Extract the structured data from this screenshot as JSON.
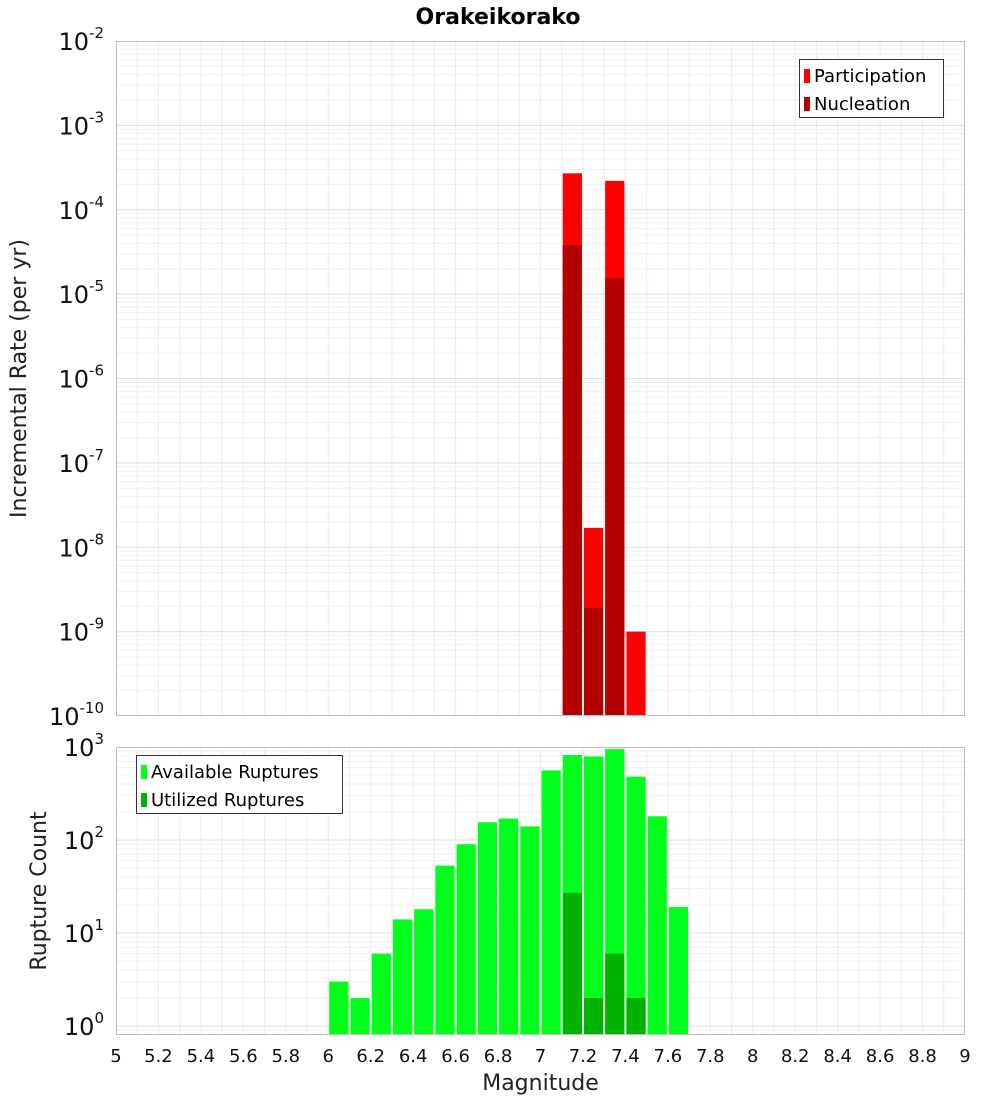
{
  "chart_data": [
    {
      "type": "bar",
      "title": "Orakeikorako",
      "ylabel": "Incremental Rate (per yr)",
      "yscale": "log",
      "ylim": [
        1e-10,
        0.01
      ],
      "xlim": [
        5,
        9
      ],
      "grid": true,
      "legend_position": "top-right",
      "y_ticks": [
        {
          "base": "10",
          "exp": "-10"
        },
        {
          "base": "10",
          "exp": "-9"
        },
        {
          "base": "10",
          "exp": "-8"
        },
        {
          "base": "10",
          "exp": "-7"
        },
        {
          "base": "10",
          "exp": "-6"
        },
        {
          "base": "10",
          "exp": "-5"
        },
        {
          "base": "10",
          "exp": "-4"
        },
        {
          "base": "10",
          "exp": "-3"
        },
        {
          "base": "10",
          "exp": "-2"
        }
      ],
      "series": [
        {
          "name": "Participation",
          "color": "#ff0000",
          "points": [
            [
              7.15,
              0.00027
            ],
            [
              7.25,
              1.7e-08
            ],
            [
              7.35,
              0.00022
            ],
            [
              7.45,
              1e-09
            ]
          ]
        },
        {
          "name": "Nucleation",
          "color": "#b30000",
          "points": [
            [
              7.15,
              3.8e-05
            ],
            [
              7.25,
              1.9e-09
            ],
            [
              7.35,
              1.55e-05
            ]
          ]
        }
      ]
    },
    {
      "type": "bar",
      "xlabel": "Magnitude",
      "ylabel": "Rupture Count",
      "yscale": "log",
      "ylim": [
        0.8,
        1000
      ],
      "xlim": [
        5,
        9
      ],
      "grid": true,
      "legend_position": "top-left",
      "y_ticks": [
        {
          "base": "10",
          "exp": "0"
        },
        {
          "base": "10",
          "exp": "1"
        },
        {
          "base": "10",
          "exp": "2"
        },
        {
          "base": "10",
          "exp": "3"
        }
      ],
      "x_ticks": [
        "5",
        "5.2",
        "5.4",
        "5.6",
        "5.8",
        "6",
        "6.2",
        "6.4",
        "6.6",
        "6.8",
        "7",
        "7.2",
        "7.4",
        "7.6",
        "7.8",
        "8",
        "8.2",
        "8.4",
        "8.6",
        "8.8",
        "9"
      ],
      "series": [
        {
          "name": "Available Ruptures",
          "color": "#00ff1a",
          "points": [
            [
              6.05,
              3
            ],
            [
              6.15,
              2
            ],
            [
              6.25,
              6
            ],
            [
              6.35,
              14
            ],
            [
              6.45,
              18
            ],
            [
              6.55,
              53
            ],
            [
              6.65,
              90
            ],
            [
              6.75,
              155
            ],
            [
              6.85,
              170
            ],
            [
              6.95,
              140
            ],
            [
              7.05,
              560
            ],
            [
              7.15,
              820
            ],
            [
              7.25,
              790
            ],
            [
              7.35,
              950
            ],
            [
              7.45,
              480
            ],
            [
              7.55,
              180
            ],
            [
              7.65,
              19
            ]
          ]
        },
        {
          "name": "Utilized Ruptures",
          "color": "#00b300",
          "points": [
            [
              7.15,
              27
            ],
            [
              7.25,
              2
            ],
            [
              7.35,
              6
            ],
            [
              7.45,
              2
            ]
          ]
        }
      ]
    }
  ]
}
